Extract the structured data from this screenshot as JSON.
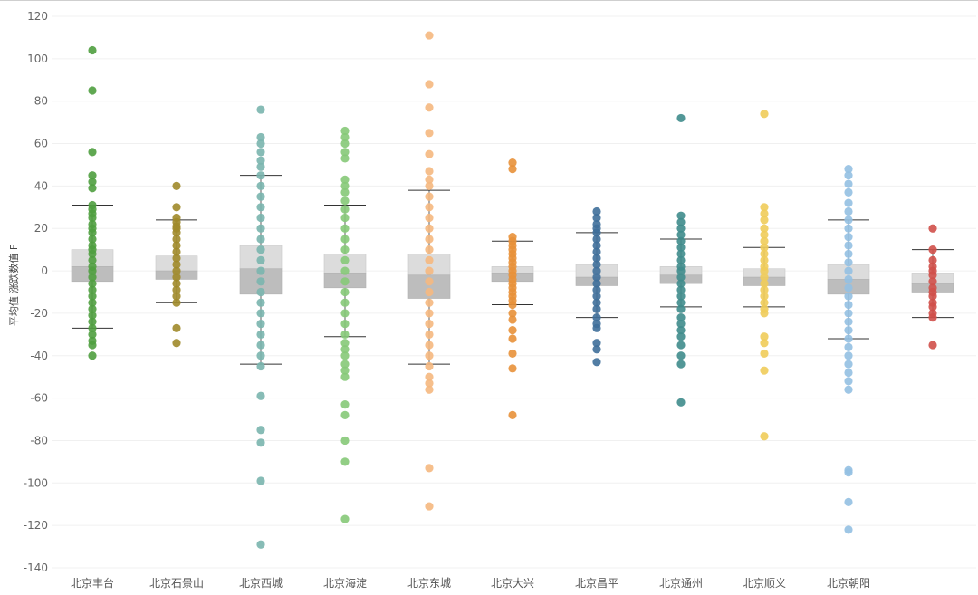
{
  "chart_data": {
    "type": "box",
    "ylabel": "平均值 涨跌数值 F",
    "ylim": [
      -142,
      122
    ],
    "yticks": [
      120,
      100,
      80,
      60,
      40,
      20,
      0,
      -20,
      -40,
      -60,
      -80,
      -100,
      -120,
      -140
    ],
    "grid": true,
    "categories": [
      {
        "name": "北京丰台",
        "color": "#4f9e3f",
        "q1": -5,
        "median": 2,
        "q3": 10,
        "whisker_low": -27,
        "whisker_high": 31,
        "points": [
          104,
          85,
          56,
          45,
          42,
          39,
          31,
          29,
          27,
          25,
          22,
          20,
          18,
          15,
          12,
          10,
          8,
          5,
          2,
          0,
          -3,
          -6,
          -9,
          -12,
          -15,
          -18,
          -21,
          -24,
          -27,
          -30,
          -33,
          -35,
          -40
        ]
      },
      {
        "name": "北京石景山",
        "color": "#a08a2a",
        "q1": -4,
        "median": 0,
        "q3": 7,
        "whisker_low": -15,
        "whisker_high": 24,
        "points": [
          40,
          30,
          25,
          23,
          21,
          20,
          18,
          15,
          12,
          9,
          6,
          3,
          0,
          -3,
          -6,
          -9,
          -12,
          -15,
          -27,
          -34
        ]
      },
      {
        "name": "北京西城",
        "color": "#7ab5ae",
        "q1": -11,
        "median": 1,
        "q3": 12,
        "whisker_low": -44,
        "whisker_high": 45,
        "points": [
          76,
          63,
          60,
          56,
          52,
          49,
          45,
          40,
          35,
          30,
          25,
          20,
          15,
          10,
          5,
          0,
          -5,
          -10,
          -15,
          -20,
          -25,
          -30,
          -35,
          -40,
          -45,
          -59,
          -75,
          -81,
          -99,
          -129
        ]
      },
      {
        "name": "北京海淀",
        "color": "#86c978",
        "q1": -8,
        "median": -1,
        "q3": 8,
        "whisker_low": -31,
        "whisker_high": 31,
        "points": [
          66,
          63,
          60,
          56,
          53,
          43,
          40,
          37,
          33,
          29,
          25,
          20,
          15,
          10,
          5,
          0,
          -5,
          -10,
          -15,
          -20,
          -25,
          -30,
          -34,
          -37,
          -40,
          -44,
          -47,
          -50,
          -63,
          -68,
          -80,
          -90,
          -117
        ]
      },
      {
        "name": "北京东城",
        "color": "#f5b880",
        "q1": -13,
        "median": -2,
        "q3": 8,
        "whisker_low": -44,
        "whisker_high": 38,
        "points": [
          111,
          88,
          77,
          65,
          55,
          47,
          43,
          40,
          35,
          30,
          25,
          20,
          15,
          10,
          5,
          0,
          -5,
          -10,
          -15,
          -20,
          -25,
          -30,
          -35,
          -40,
          -45,
          -50,
          -53,
          -56,
          -93,
          -111
        ]
      },
      {
        "name": "北京大兴",
        "color": "#e8913a",
        "q1": -5,
        "median": -1,
        "q3": 2,
        "whisker_low": -16,
        "whisker_high": 14,
        "points": [
          51,
          48,
          16,
          14,
          12,
          10,
          8,
          6,
          4,
          2,
          0,
          -2,
          -4,
          -6,
          -8,
          -10,
          -12,
          -14,
          -16,
          -20,
          -23,
          -28,
          -32,
          -39,
          -46,
          -68
        ]
      },
      {
        "name": "北京昌平",
        "color": "#3f6f9a",
        "q1": -7,
        "median": -3,
        "q3": 3,
        "whisker_low": -22,
        "whisker_high": 18,
        "points": [
          28,
          25,
          22,
          20,
          18,
          15,
          12,
          9,
          6,
          3,
          0,
          -3,
          -6,
          -9,
          -12,
          -15,
          -18,
          -22,
          -25,
          -27,
          -34,
          -37,
          -43
        ]
      },
      {
        "name": "北京通州",
        "color": "#3f8c8c",
        "q1": -6,
        "median": -2,
        "q3": 2,
        "whisker_low": -17,
        "whisker_high": 15,
        "points": [
          72,
          26,
          23,
          20,
          17,
          14,
          11,
          8,
          5,
          2,
          0,
          -3,
          -6,
          -9,
          -12,
          -15,
          -18,
          -22,
          -25,
          -28,
          -31,
          -35,
          -40,
          -44,
          -62
        ]
      },
      {
        "name": "北京顺义",
        "color": "#f0cc5a",
        "q1": -7,
        "median": -3,
        "q3": 1,
        "whisker_low": -17,
        "whisker_high": 11,
        "points": [
          74,
          30,
          27,
          24,
          20,
          17,
          14,
          11,
          8,
          5,
          2,
          0,
          -3,
          -6,
          -9,
          -12,
          -15,
          -18,
          -20,
          -31,
          -34,
          -39,
          -47,
          -78
        ]
      },
      {
        "name": "北京朝阳",
        "color": "#93c0e2",
        "q1": -11,
        "median": -4,
        "q3": 3,
        "whisker_low": -32,
        "whisker_high": 24,
        "points": [
          48,
          45,
          41,
          37,
          32,
          28,
          24,
          20,
          16,
          12,
          8,
          4,
          0,
          -4,
          -8,
          -12,
          -16,
          -20,
          -24,
          -28,
          -32,
          -36,
          -40,
          -44,
          -48,
          -52,
          -56,
          -94,
          -95,
          -109,
          -122
        ]
      },
      {
        "name": "",
        "color": "#d0504a",
        "q1": -10,
        "median": -6,
        "q3": -1,
        "whisker_low": -22,
        "whisker_high": 10,
        "points": [
          20,
          10,
          5,
          2,
          0,
          -2,
          -5,
          -8,
          -10,
          -12,
          -15,
          -17,
          -20,
          -22,
          -35
        ]
      }
    ]
  }
}
